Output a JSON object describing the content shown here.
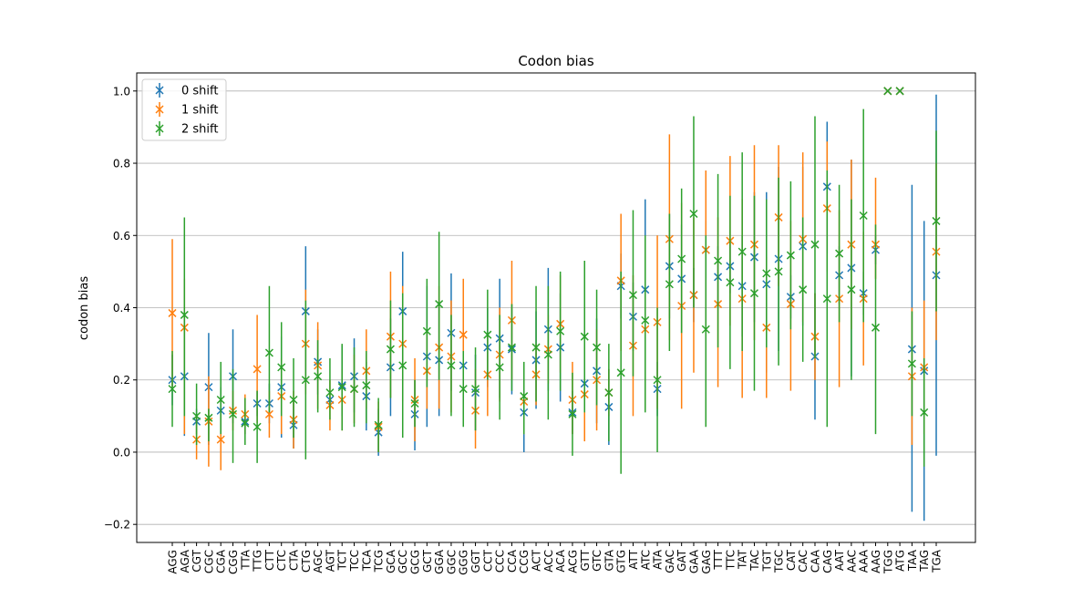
{
  "chart_data": {
    "type": "scatter",
    "title": "Codon bias",
    "xlabel": "",
    "ylabel": "codon bias",
    "ylim": [
      -0.25,
      1.05
    ],
    "yticks": [
      -0.2,
      0.0,
      0.2,
      0.4,
      0.6,
      0.8,
      1.0
    ],
    "ytick_labels": [
      "−0.2",
      "0.0",
      "0.2",
      "0.4",
      "0.6",
      "0.8",
      "1.0"
    ],
    "grid": "y",
    "legend_position": "top-left",
    "categories": [
      "AGG",
      "AGA",
      "CGT",
      "CGC",
      "CGA",
      "CGG",
      "TTA",
      "TTG",
      "CTT",
      "CTC",
      "CTA",
      "CTG",
      "AGC",
      "AGT",
      "TCT",
      "TCC",
      "TCA",
      "TCG",
      "GCA",
      "GCC",
      "GCG",
      "GCT",
      "GGA",
      "GGC",
      "GGG",
      "GGT",
      "CCT",
      "CCC",
      "CCA",
      "CCG",
      "ACT",
      "ACC",
      "ACA",
      "ACG",
      "GTT",
      "GTC",
      "GTA",
      "GTG",
      "ATT",
      "ATC",
      "ATA",
      "GAC",
      "GAT",
      "GAA",
      "GAG",
      "TTT",
      "TTC",
      "TAT",
      "TAC",
      "TGT",
      "TGC",
      "CAT",
      "CAC",
      "CAA",
      "CAG",
      "AAT",
      "AAC",
      "AAA",
      "AAG",
      "TGG",
      "ATG",
      "TAA",
      "TAG",
      "TGA"
    ],
    "series": [
      {
        "name": "0 shift",
        "color": "#1f77b4",
        "values": [
          0.2,
          0.21,
          0.085,
          0.18,
          0.115,
          0.21,
          0.085,
          0.135,
          0.135,
          0.18,
          0.075,
          0.39,
          0.25,
          0.145,
          0.185,
          0.21,
          0.155,
          0.055,
          0.235,
          0.39,
          0.105,
          0.265,
          0.255,
          0.33,
          0.24,
          0.165,
          0.29,
          0.315,
          0.285,
          0.11,
          0.255,
          0.34,
          0.29,
          0.11,
          0.19,
          0.225,
          0.125,
          0.46,
          0.375,
          0.45,
          0.175,
          0.515,
          0.48,
          0.435,
          0.56,
          0.485,
          0.515,
          0.46,
          0.54,
          0.465,
          0.535,
          0.43,
          0.57,
          0.265,
          0.735,
          0.49,
          0.51,
          0.44,
          0.56,
          1.0,
          1.0,
          0.285,
          0.225,
          0.49
        ],
        "lower": [
          0.13,
          0.045,
          0.05,
          0.02,
          0.05,
          0.08,
          0.05,
          0.1,
          0.08,
          0.04,
          0.01,
          0.21,
          0.16,
          0.12,
          0.1,
          0.11,
          0.06,
          -0.01,
          0.1,
          0.23,
          0.005,
          0.07,
          0.1,
          0.17,
          0.14,
          0.06,
          0.18,
          0.15,
          0.16,
          0.0,
          0.12,
          0.17,
          0.14,
          0.05,
          0.13,
          0.08,
          0.02,
          0.37,
          0.28,
          0.2,
          0.1,
          0.37,
          0.33,
          0.36,
          0.48,
          0.4,
          0.44,
          0.32,
          0.36,
          0.22,
          0.28,
          0.37,
          0.35,
          0.09,
          0.55,
          0.41,
          0.21,
          0.38,
          0.52,
          1.0,
          1.0,
          -0.165,
          -0.19,
          -0.01
        ],
        "upper": [
          0.27,
          0.375,
          0.12,
          0.33,
          0.18,
          0.34,
          0.12,
          0.17,
          0.19,
          0.32,
          0.14,
          0.57,
          0.34,
          0.17,
          0.295,
          0.315,
          0.25,
          0.12,
          0.37,
          0.555,
          0.2,
          0.46,
          0.41,
          0.495,
          0.34,
          0.27,
          0.4,
          0.48,
          0.41,
          0.22,
          0.39,
          0.51,
          0.44,
          0.17,
          0.25,
          0.37,
          0.23,
          0.55,
          0.47,
          0.7,
          0.25,
          0.66,
          0.63,
          0.51,
          0.64,
          0.57,
          0.59,
          0.6,
          0.72,
          0.72,
          0.79,
          0.49,
          0.79,
          0.44,
          0.915,
          0.57,
          0.81,
          0.5,
          0.6,
          1.0,
          1.0,
          0.74,
          0.64,
          0.99
        ]
      },
      {
        "name": "1 shift",
        "color": "#ff7f0e",
        "values": [
          0.385,
          0.345,
          0.035,
          0.085,
          0.035,
          0.115,
          0.105,
          0.23,
          0.105,
          0.155,
          0.09,
          0.3,
          0.24,
          0.13,
          0.145,
          0.175,
          0.225,
          0.07,
          0.32,
          0.3,
          0.145,
          0.225,
          0.29,
          0.265,
          0.325,
          0.115,
          0.215,
          0.27,
          0.365,
          0.14,
          0.215,
          0.285,
          0.355,
          0.145,
          0.16,
          0.2,
          0.165,
          0.475,
          0.295,
          0.34,
          0.36,
          0.59,
          0.405,
          0.435,
          0.56,
          0.41,
          0.585,
          0.425,
          0.575,
          0.345,
          0.65,
          0.41,
          0.59,
          0.32,
          0.675,
          0.425,
          0.575,
          0.425,
          0.575,
          1.0,
          1.0,
          0.21,
          0.235,
          0.555
        ],
        "lower": [
          0.18,
          0.05,
          -0.02,
          -0.04,
          -0.05,
          0.06,
          0.05,
          0.08,
          0.04,
          0.05,
          0.01,
          0.16,
          0.12,
          0.06,
          0.06,
          0.08,
          0.12,
          0.0,
          0.15,
          0.14,
          0.03,
          0.12,
          0.12,
          0.11,
          0.16,
          0.01,
          0.1,
          0.14,
          0.2,
          0.05,
          0.13,
          0.19,
          0.22,
          0.05,
          0.03,
          0.06,
          0.1,
          0.28,
          0.1,
          0.12,
          0.12,
          0.31,
          0.12,
          0.22,
          0.33,
          0.18,
          0.35,
          0.15,
          0.31,
          0.15,
          0.46,
          0.17,
          0.36,
          0.2,
          0.5,
          0.18,
          0.34,
          0.24,
          0.48,
          1.0,
          1.0,
          0.02,
          0.05,
          0.31
        ],
        "upper": [
          0.59,
          0.48,
          0.1,
          0.21,
          0.12,
          0.17,
          0.16,
          0.38,
          0.17,
          0.26,
          0.17,
          0.45,
          0.36,
          0.2,
          0.23,
          0.27,
          0.34,
          0.14,
          0.5,
          0.46,
          0.26,
          0.34,
          0.46,
          0.42,
          0.48,
          0.23,
          0.33,
          0.4,
          0.53,
          0.23,
          0.3,
          0.38,
          0.49,
          0.25,
          0.29,
          0.34,
          0.23,
          0.66,
          0.49,
          0.56,
          0.6,
          0.88,
          0.69,
          0.65,
          0.78,
          0.65,
          0.82,
          0.7,
          0.85,
          0.54,
          0.85,
          0.64,
          0.83,
          0.44,
          0.86,
          0.67,
          0.81,
          0.61,
          0.76,
          1.0,
          1.0,
          0.4,
          0.42,
          0.8
        ]
      },
      {
        "name": "2 shift",
        "color": "#2ca02c",
        "values": [
          0.175,
          0.38,
          0.1,
          0.095,
          0.145,
          0.105,
          0.08,
          0.07,
          0.275,
          0.235,
          0.145,
          0.2,
          0.21,
          0.165,
          0.18,
          0.175,
          0.185,
          0.075,
          0.285,
          0.24,
          0.135,
          0.335,
          0.41,
          0.24,
          0.175,
          0.175,
          0.325,
          0.235,
          0.29,
          0.155,
          0.29,
          0.27,
          0.335,
          0.105,
          0.32,
          0.29,
          0.165,
          0.22,
          0.435,
          0.365,
          0.2,
          0.465,
          0.535,
          0.66,
          0.34,
          0.53,
          0.47,
          0.555,
          0.44,
          0.495,
          0.5,
          0.545,
          0.45,
          0.575,
          0.425,
          0.55,
          0.45,
          0.655,
          0.345,
          1.0,
          1.0,
          0.245,
          0.11,
          0.64
        ],
        "lower": [
          0.07,
          0.1,
          0.02,
          0.03,
          0.05,
          -0.03,
          0.02,
          -0.03,
          0.11,
          0.1,
          0.04,
          -0.02,
          0.11,
          0.09,
          0.06,
          0.07,
          0.08,
          0.0,
          0.15,
          0.04,
          0.07,
          0.18,
          0.2,
          0.1,
          0.07,
          0.06,
          0.2,
          0.09,
          0.17,
          0.05,
          0.14,
          0.09,
          0.17,
          -0.01,
          0.11,
          0.13,
          0.03,
          -0.06,
          0.21,
          0.11,
          0.0,
          0.28,
          0.33,
          0.4,
          0.07,
          0.29,
          0.23,
          0.28,
          0.17,
          0.29,
          0.24,
          0.34,
          0.25,
          0.26,
          0.07,
          0.36,
          0.2,
          0.36,
          0.05,
          1.0,
          1.0,
          0.1,
          -0.04,
          0.39
        ],
        "upper": [
          0.28,
          0.65,
          0.19,
          0.12,
          0.25,
          0.23,
          0.15,
          0.17,
          0.46,
          0.36,
          0.26,
          0.42,
          0.31,
          0.26,
          0.3,
          0.29,
          0.28,
          0.15,
          0.42,
          0.44,
          0.2,
          0.48,
          0.61,
          0.38,
          0.28,
          0.29,
          0.45,
          0.38,
          0.41,
          0.25,
          0.46,
          0.46,
          0.5,
          0.22,
          0.53,
          0.45,
          0.3,
          0.5,
          0.67,
          0.6,
          0.4,
          0.66,
          0.73,
          0.93,
          0.6,
          0.77,
          0.71,
          0.83,
          0.71,
          0.7,
          0.76,
          0.75,
          0.65,
          0.93,
          0.78,
          0.74,
          0.7,
          0.95,
          0.63,
          1.0,
          1.0,
          0.39,
          0.26,
          0.89
        ]
      }
    ]
  }
}
